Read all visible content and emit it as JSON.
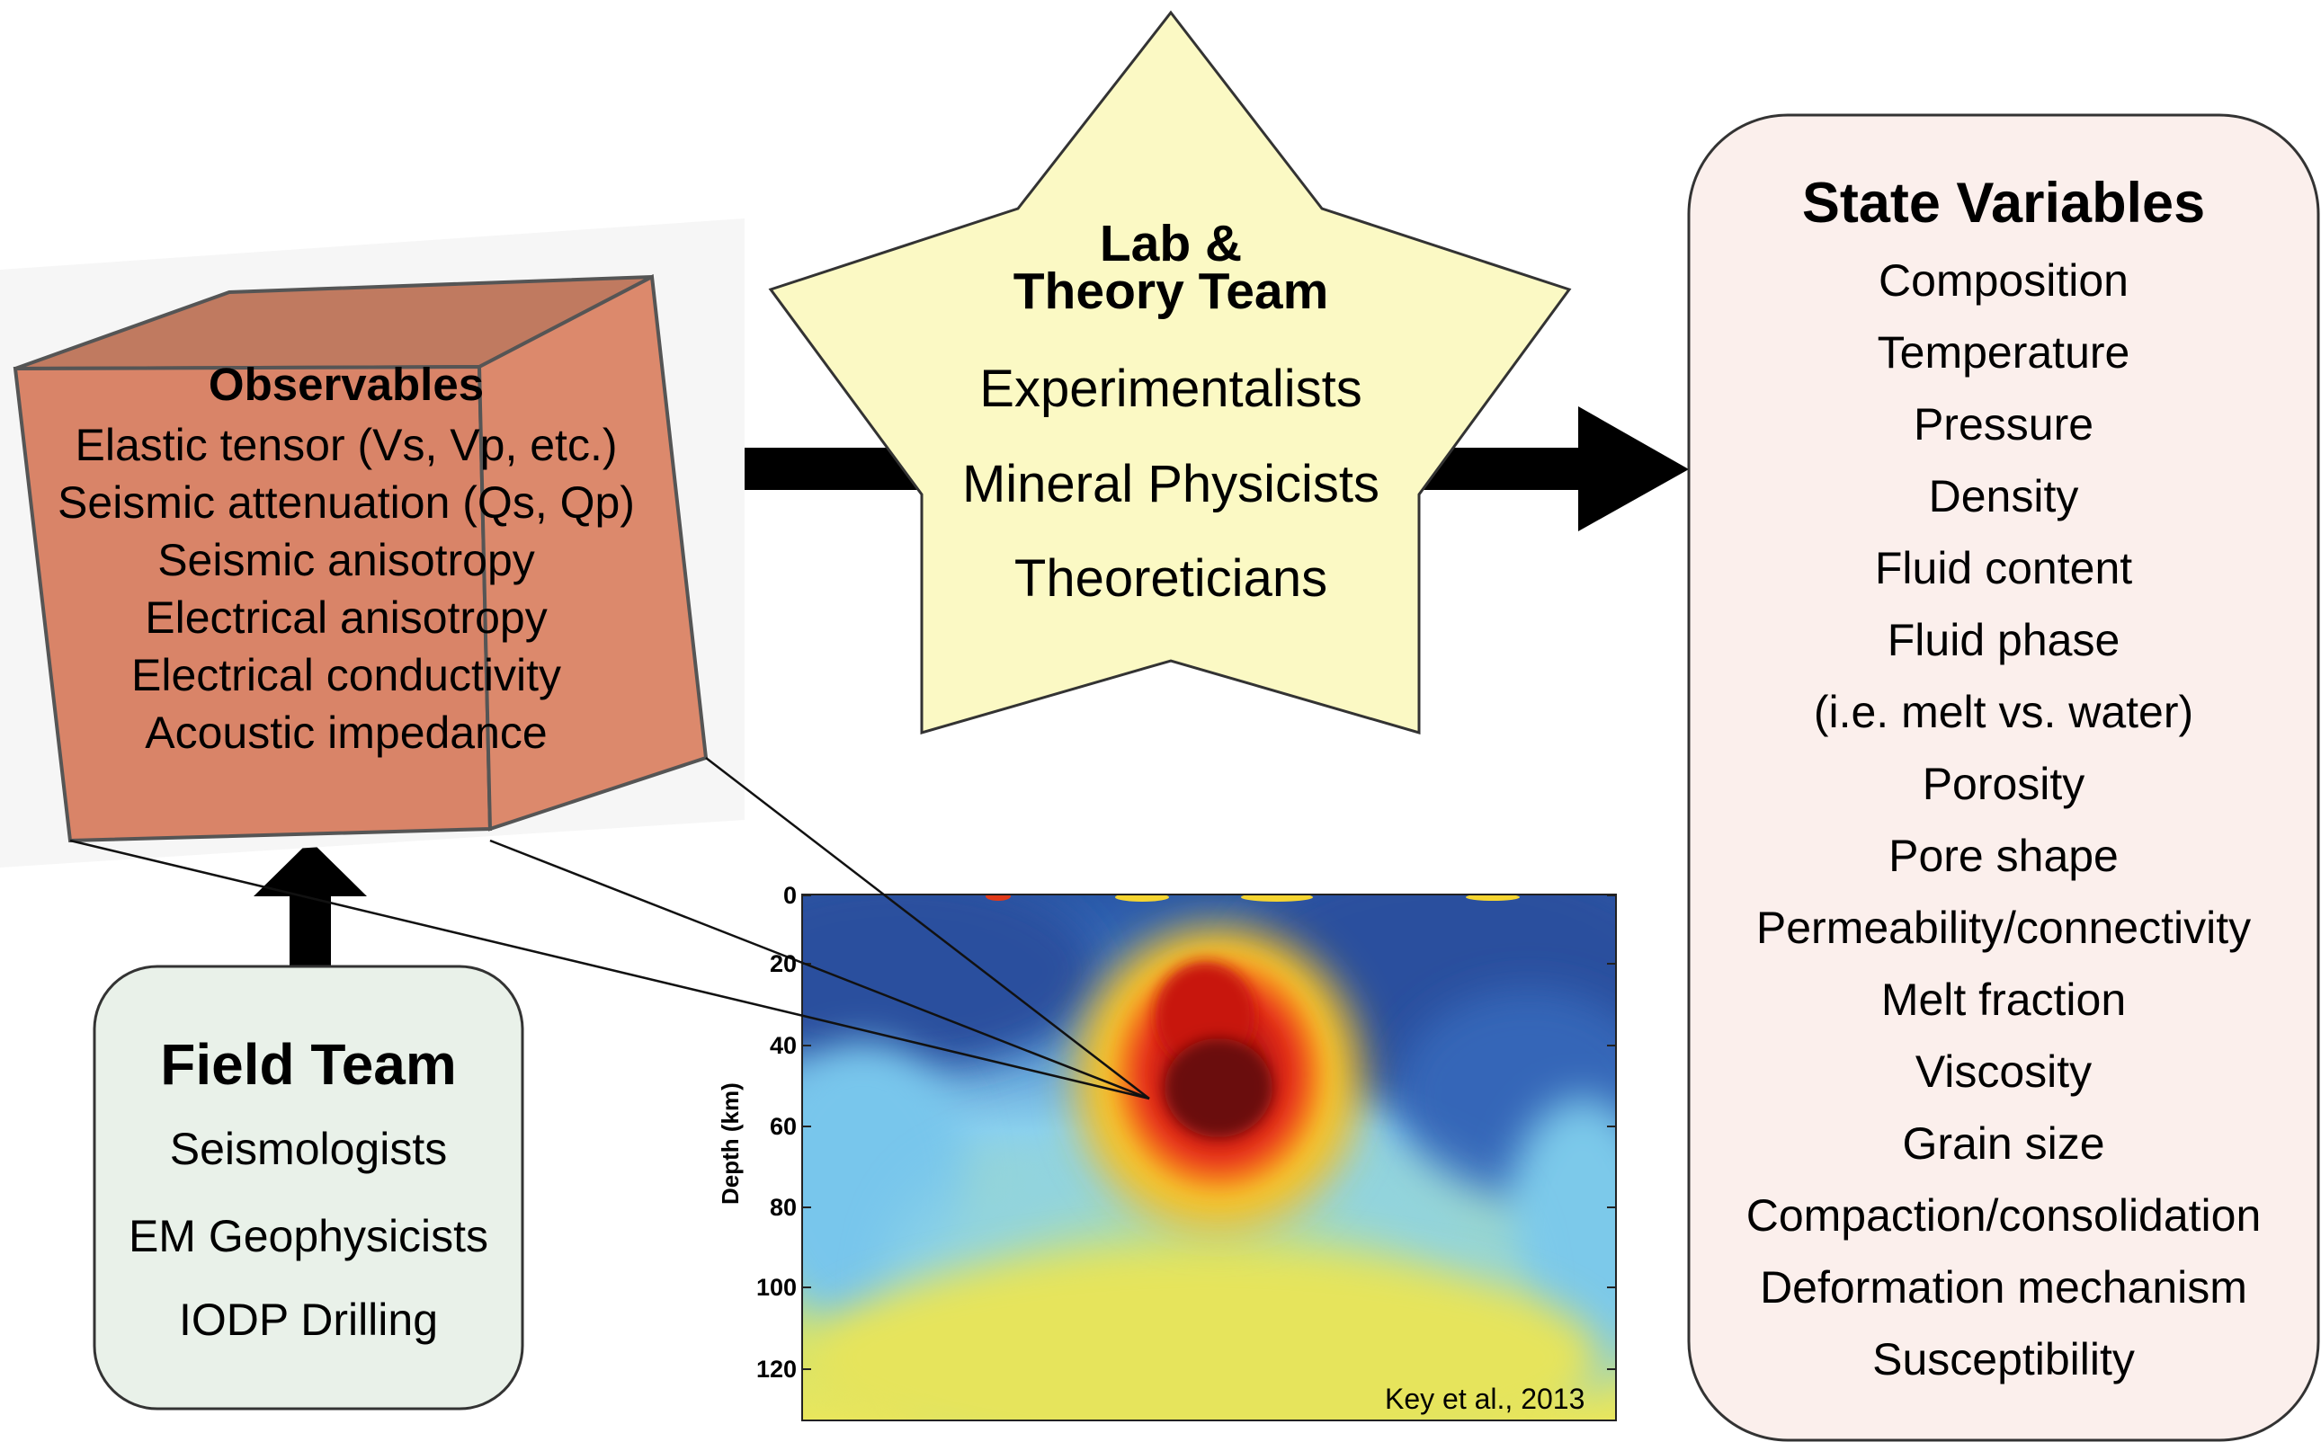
{
  "observables": {
    "title": "Observables",
    "items": [
      "Elastic tensor (Vs, Vp, etc.)",
      "Seismic attenuation (Qs, Qp)",
      "Seismic anisotropy",
      "Electrical anisotropy",
      "Electrical conductivity",
      "Acoustic impedance"
    ]
  },
  "lab_team": {
    "title_line1": "Lab &",
    "title_line2": "Theory Team",
    "items": [
      "Experimentalists",
      "Mineral Physicists",
      "Theoreticians"
    ]
  },
  "state_variables": {
    "title": "State Variables",
    "items": [
      "Composition",
      "Temperature",
      "Pressure",
      "Density",
      "Fluid content",
      "Fluid phase",
      "(i.e. melt vs. water)",
      "Porosity",
      "Pore shape",
      "Permeability/connectivity",
      "Melt fraction",
      "Viscosity",
      "Grain size",
      "Compaction/consolidation",
      "Deformation mechanism",
      "Susceptibility"
    ]
  },
  "field_team": {
    "title": "Field Team",
    "items": [
      "Seismologists",
      "EM Geophysicists",
      "IODP Drilling"
    ]
  },
  "depth_section": {
    "ylabel": "Depth (km)",
    "ticks": [
      "0",
      "20",
      "40",
      "60",
      "80",
      "100",
      "120"
    ],
    "tick_values": [
      0,
      20,
      40,
      60,
      80,
      100,
      120
    ],
    "credit": "Key et al., 2013"
  },
  "colors": {
    "cube_front": "#d98468",
    "cube_top": "#c07a60",
    "cube_side": "#dd8a6d",
    "star_fill": "#fbf9c4",
    "field_box_fill": "#e9f1e9",
    "state_box_fill": "#fbefec",
    "arrow": "#000000"
  }
}
